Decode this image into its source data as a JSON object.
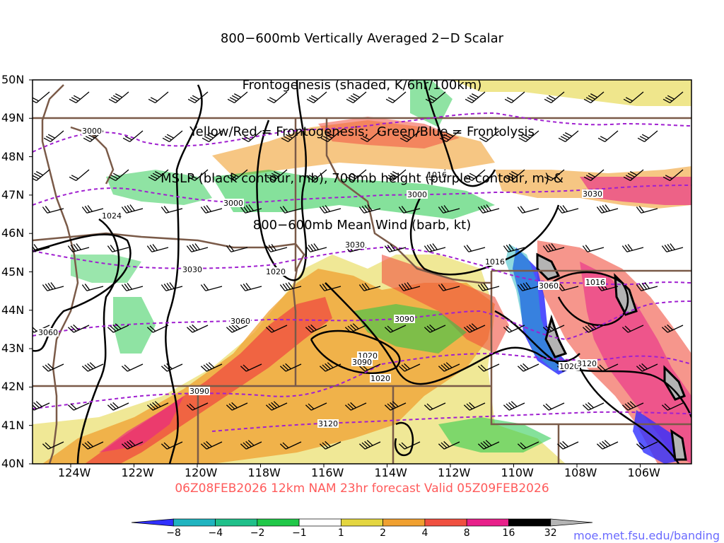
{
  "title_lines": [
    "800−600mb Vertically Averaged 2−D Scalar",
    "Frontogenesis (shaded, K/6hr/100km)",
    "Yellow/Red = Frontogenesis;  Green/Blue = Frontolysis",
    "MSLP (black contour, mb), 700mb height (purple contour, m) &",
    "800−600mb Mean Wind (barb, kt)"
  ],
  "subtitle": "06Z08FEB2026 12km NAM 23hr forecast Valid 05Z09FEB2026",
  "url": "moe.met.fsu.edu/banding",
  "lat_labels": [
    "50N",
    "49N",
    "48N",
    "47N",
    "46N",
    "45N",
    "44N",
    "43N",
    "42N",
    "41N",
    "40N"
  ],
  "lon_labels": [
    "124W",
    "122W",
    "120W",
    "118W",
    "116W",
    "114W",
    "112W",
    "110W",
    "108W",
    "106W"
  ],
  "colorbar": {
    "labels": [
      "−8",
      "−4",
      "−2",
      "−1",
      "1",
      "2",
      "4",
      "8",
      "16",
      "32"
    ],
    "colors": [
      "#3030ff",
      "#20b4c0",
      "#20c08a",
      "#20c848",
      "#ffffff",
      "#e4d640",
      "#f0a030",
      "#f05040",
      "#e8208a",
      "#000000",
      "#b4b4b4"
    ]
  },
  "contour_labels": {
    "mslp": [
      "1024",
      "1020",
      "1016",
      "1016",
      "1020",
      "1020",
      "1020",
      "1016"
    ],
    "height": [
      "3000",
      "3000",
      "3000",
      "3030",
      "3030",
      "3030",
      "3060",
      "3060",
      "3060",
      "3090",
      "3090",
      "3090",
      "3120",
      "3120"
    ]
  }
}
